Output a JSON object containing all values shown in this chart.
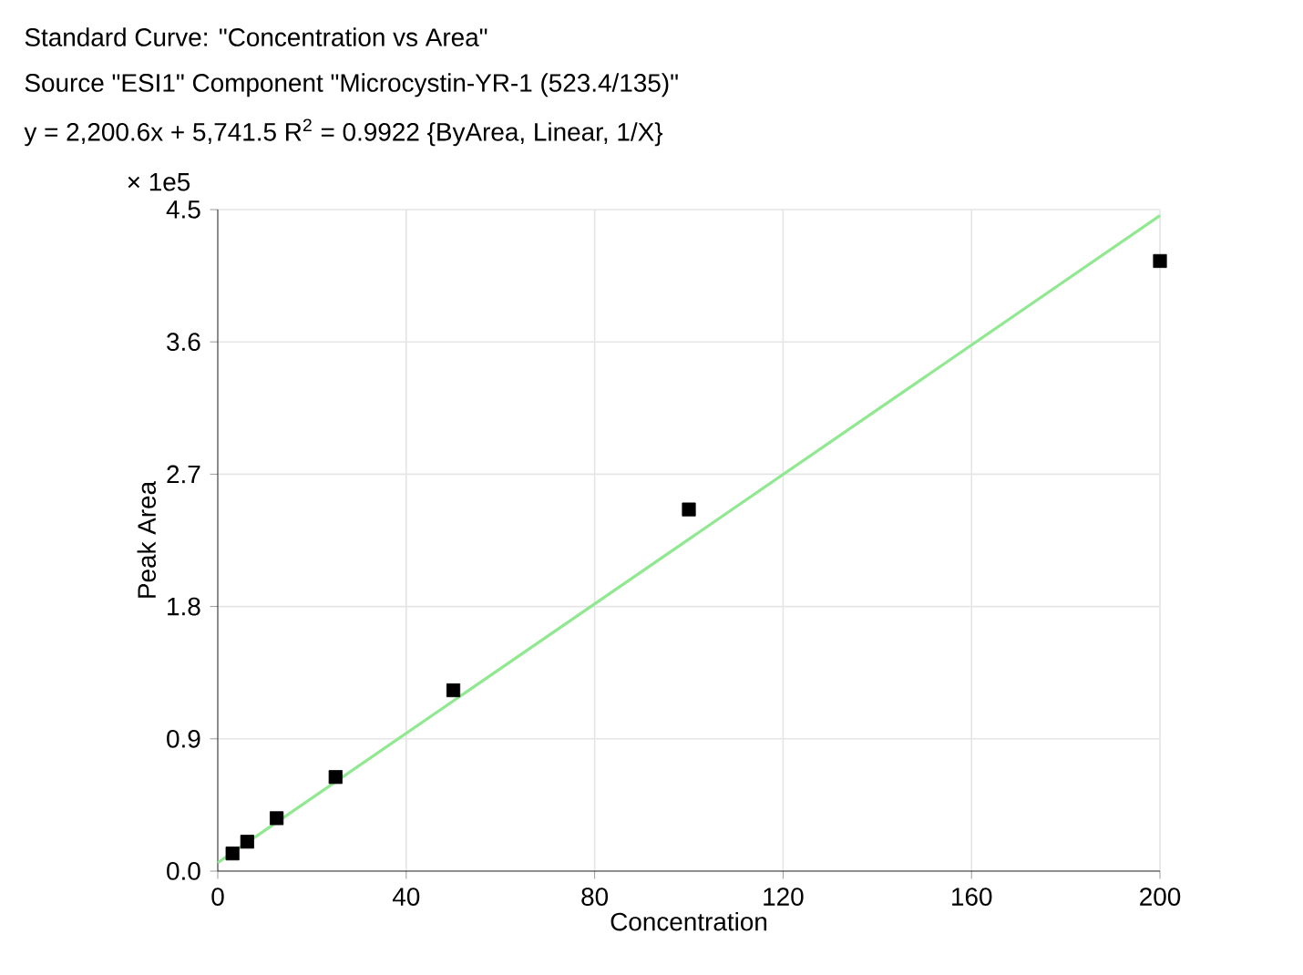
{
  "chart_data": {
    "type": "scatter",
    "title": "Standard Curve: \"Concentration vs Area\"",
    "subtitle": "Source \"ESI1\" Component \"Microcystin-YR-1 (523.4/135)\"",
    "annotations": [
      "y = 2,200.6x + 5,741.5    R$^{2}$ = 0.9922 {ByArea, Linear, 1/X}",
      "× 1e5"
    ],
    "xlabel": "Concentration",
    "ylabel": "Peak Area",
    "xlim": [
      0,
      200
    ],
    "ylim": [
      0,
      4.5
    ],
    "xticks": [
      0,
      40,
      80,
      120,
      160,
      200
    ],
    "yticks": [
      {
        "value": 0,
        "label": "0.0"
      },
      0.9,
      1.8,
      2.7,
      3.6,
      4.5
    ],
    "grid": true,
    "series": [
      {
        "marker": "square",
        "color": "#000000",
        "x": [
          3.125,
          6.25,
          12.5,
          25,
          50,
          100,
          200
        ],
        "values": [
          0.12,
          0.2,
          0.36,
          0.64,
          1.23,
          2.46,
          4.15
        ]
      },
      {
        "type": "line",
        "marker": "none",
        "color": "#90e890",
        "x": [
          0,
          200
        ],
        "values": [
          0.057,
          4.459
        ]
      }
    ]
  }
}
